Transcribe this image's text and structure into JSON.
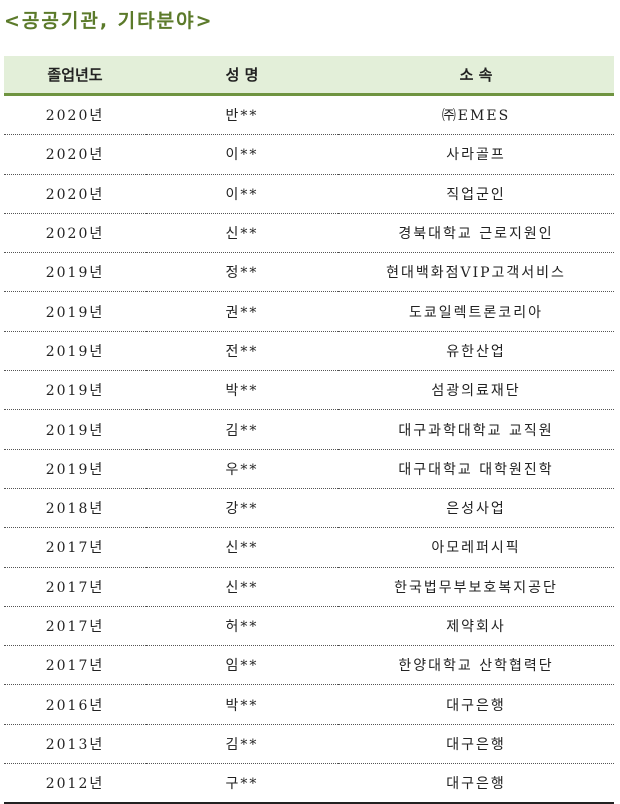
{
  "title": "<공공기관, 기타분야>",
  "headers": [
    "졸업년도",
    "성 명",
    "소 속"
  ],
  "rows": [
    [
      "2020년",
      "반**",
      "㈜EMES"
    ],
    [
      "2020년",
      "이**",
      "사라골프"
    ],
    [
      "2020년",
      "이**",
      "직업군인"
    ],
    [
      "2020년",
      "신**",
      "경북대학교 근로지원인"
    ],
    [
      "2019년",
      "정**",
      "현대백화점VIP고객서비스"
    ],
    [
      "2019년",
      "권**",
      "도쿄일렉트론코리아"
    ],
    [
      "2019년",
      "전**",
      "유한산업"
    ],
    [
      "2019년",
      "박**",
      "섬광의료재단"
    ],
    [
      "2019년",
      "김**",
      "대구과학대학교 교직원"
    ],
    [
      "2019년",
      "우**",
      "대구대학교 대학원진학"
    ],
    [
      "2018년",
      "강**",
      "은성사업"
    ],
    [
      "2017년",
      "신**",
      "아모레퍼시픽"
    ],
    [
      "2017년",
      "신**",
      "한국법무부보호복지공단"
    ],
    [
      "2017년",
      "허**",
      "제약회사"
    ],
    [
      "2017년",
      "임**",
      "한양대학교 산학협력단"
    ],
    [
      "2016년",
      "박**",
      "대구은행"
    ],
    [
      "2013년",
      "김**",
      "대구은행"
    ],
    [
      "2012년",
      "구**",
      "대구은행"
    ]
  ]
}
